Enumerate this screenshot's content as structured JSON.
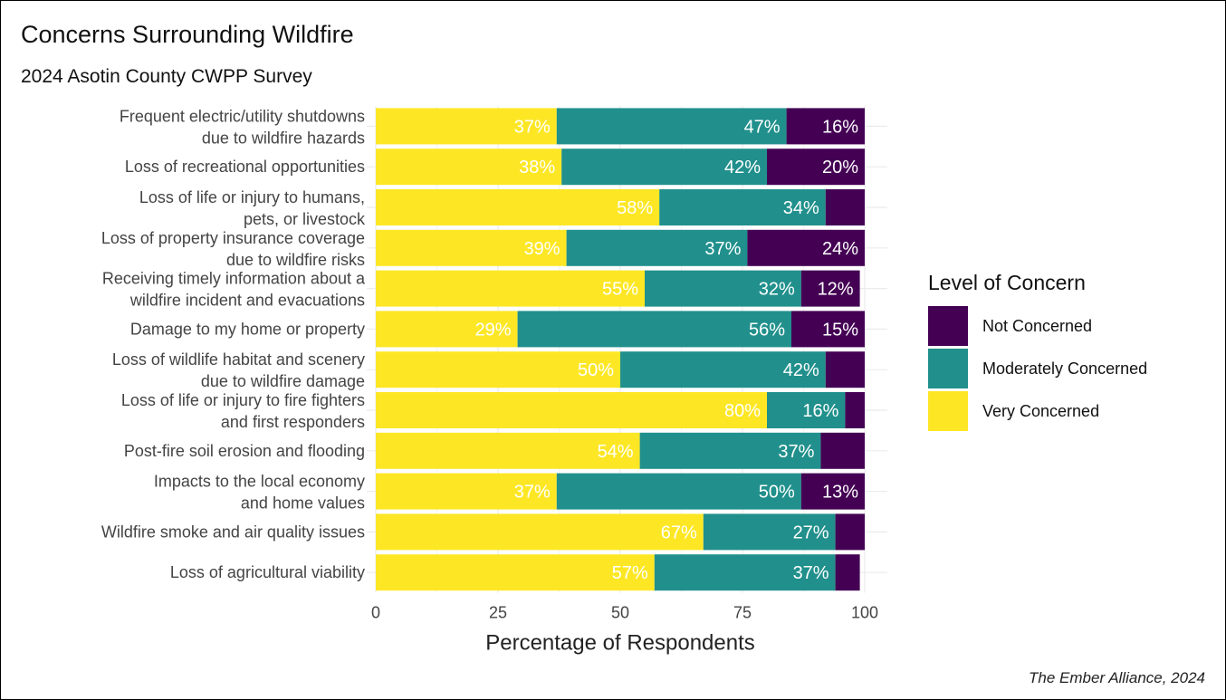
{
  "chart_data": {
    "type": "bar",
    "orientation": "horizontal",
    "stacked": true,
    "title": "Concerns Surrounding Wildfire",
    "subtitle": "2024 Asotin County CWPP Survey",
    "xlabel": "Percentage of Respondents",
    "ylabel": "",
    "xlim": [
      0,
      100
    ],
    "xticks": [
      "0",
      "25",
      "50",
      "75",
      "100"
    ],
    "grid": true,
    "legend": {
      "title": "Level of Concern",
      "placement": "right",
      "entries": [
        "Not Concerned",
        "Moderately Concerned",
        "Very Concerned"
      ]
    },
    "caption": "The Ember Alliance, 2024",
    "categories": [
      [
        "Frequent electric/utility shutdowns",
        "due to wildfire hazards"
      ],
      [
        "Loss of recreational opportunities"
      ],
      [
        "Loss of life or injury to humans,",
        "pets, or livestock"
      ],
      [
        "Loss of property insurance coverage",
        "due to wildfire risks"
      ],
      [
        "Receiving timely information about a",
        "wildfire incident and evacuations"
      ],
      [
        "Damage to my home or property"
      ],
      [
        "Loss of wildlife habitat and scenery",
        "due to wildfire damage"
      ],
      [
        "Loss of life or injury to fire fighters",
        "and first responders"
      ],
      [
        "Post-fire soil erosion and flooding"
      ],
      [
        "Impacts to the local economy",
        "and home values"
      ],
      [
        "Wildfire smoke and air quality issues"
      ],
      [
        "Loss of agricultural viability"
      ]
    ],
    "series": [
      {
        "name": "Very Concerned",
        "color": "#FDE725",
        "values": [
          37,
          38,
          58,
          39,
          55,
          29,
          50,
          80,
          54,
          37,
          67,
          57
        ],
        "labels": [
          "37%",
          "38%",
          "58%",
          "39%",
          "55%",
          "29%",
          "50%",
          "80%",
          "54%",
          "37%",
          "67%",
          "57%"
        ]
      },
      {
        "name": "Moderately Concerned",
        "color": "#21908C",
        "values": [
          47,
          42,
          34,
          37,
          32,
          56,
          42,
          16,
          37,
          50,
          27,
          37
        ],
        "labels": [
          "47%",
          "42%",
          "34%",
          "37%",
          "32%",
          "56%",
          "42%",
          "16%",
          "37%",
          "50%",
          "27%",
          "37%"
        ]
      },
      {
        "name": "Not Concerned",
        "color": "#440154",
        "values": [
          16,
          20,
          8,
          24,
          12,
          15,
          8,
          4,
          9,
          13,
          6,
          5
        ],
        "labels": [
          "16%",
          "20%",
          "",
          "24%",
          "12%",
          "15%",
          "",
          "",
          "",
          "13%",
          "",
          ""
        ]
      }
    ]
  }
}
